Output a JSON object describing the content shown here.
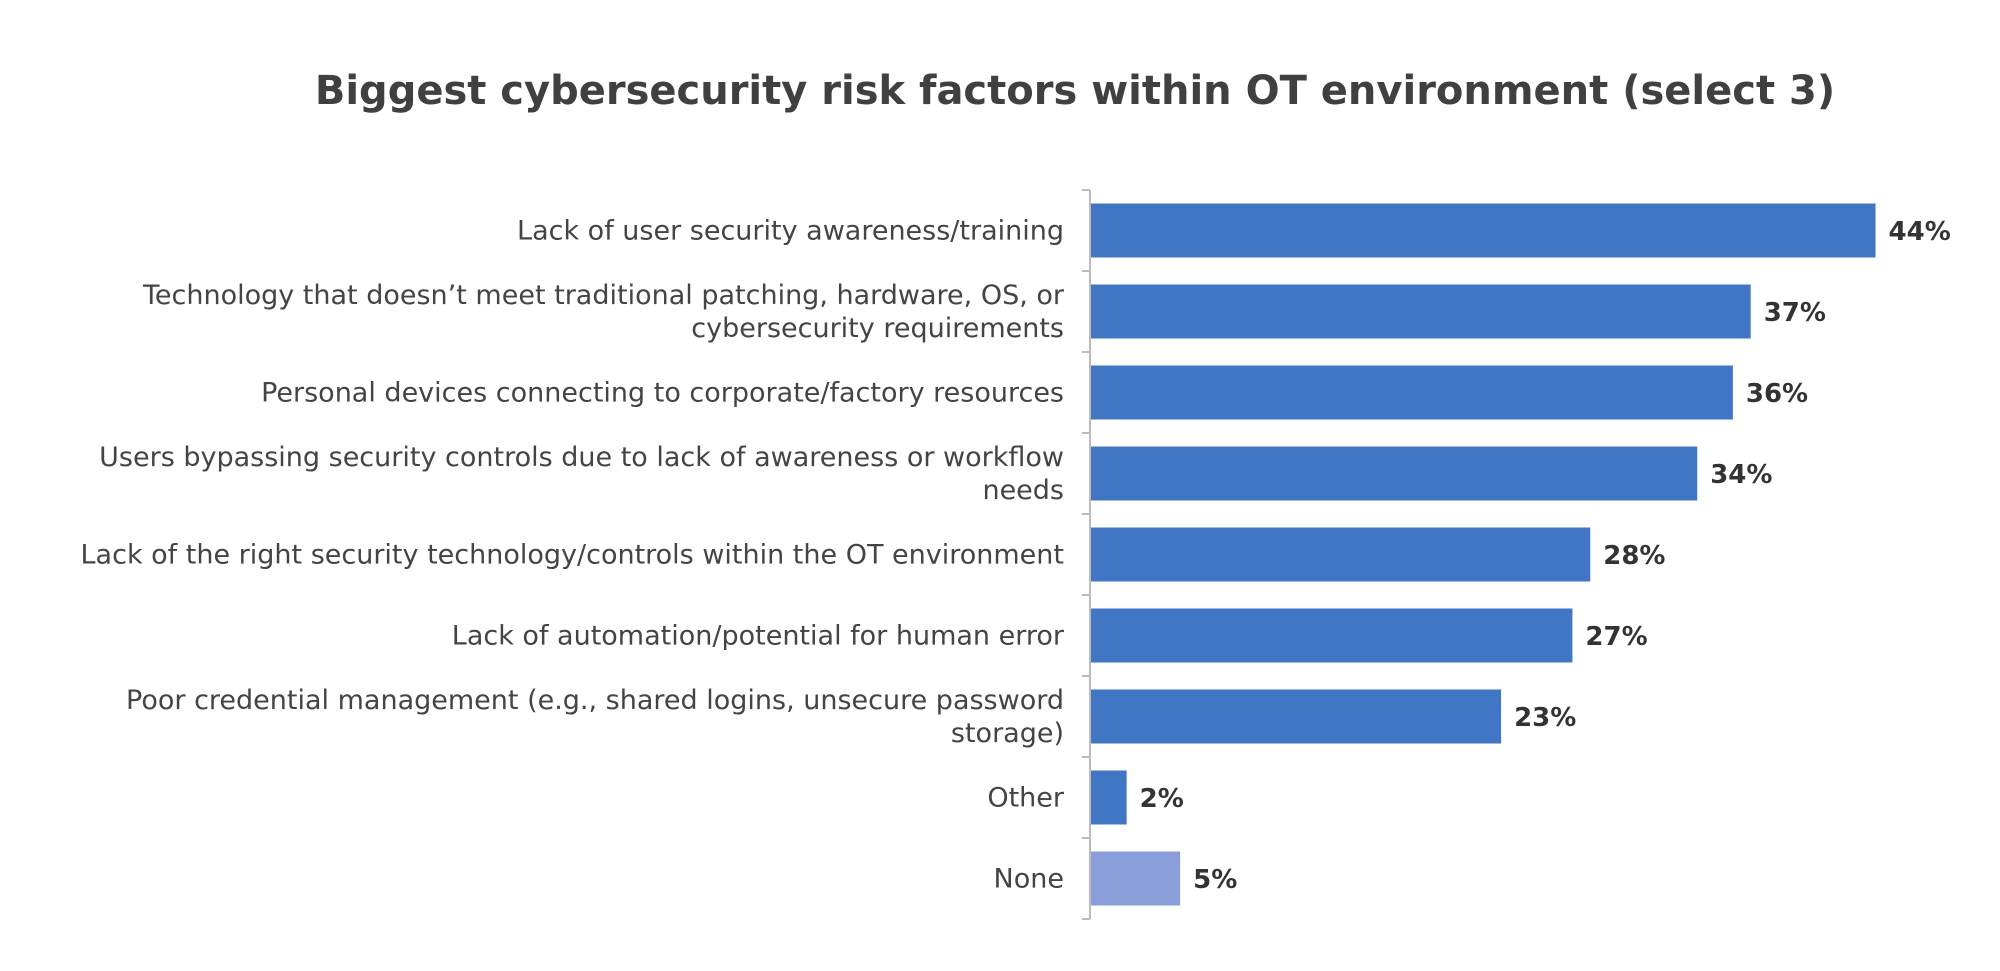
{
  "chart_data": {
    "type": "hbar",
    "title": "Biggest cybersecurity risk factors within OT environment (select 3)",
    "categories": [
      "Lack of user security awareness/training",
      "Technology that doesn’t meet traditional patching, hardware, OS, or cybersecurity requirements",
      "Personal devices connecting to corporate/factory resources",
      "Users bypassing security controls due to lack of awareness or workflow needs",
      "Lack of the right security technology/controls within the OT environment",
      "Lack of automation/potential for human error",
      "Poor credential management (e.g., shared logins, unsecure password storage)",
      "Other",
      "None"
    ],
    "values": [
      44,
      37,
      36,
      34,
      28,
      27,
      23,
      2,
      5
    ],
    "value_labels": [
      "44%",
      "37%",
      "36%",
      "34%",
      "28%",
      "27%",
      "23%",
      "2%",
      "5%"
    ],
    "colors": [
      "#4076c4",
      "#4076c4",
      "#4076c4",
      "#4076c4",
      "#4076c4",
      "#4076c4",
      "#4076c4",
      "#4076c4",
      "#8a9fd9"
    ]
  }
}
